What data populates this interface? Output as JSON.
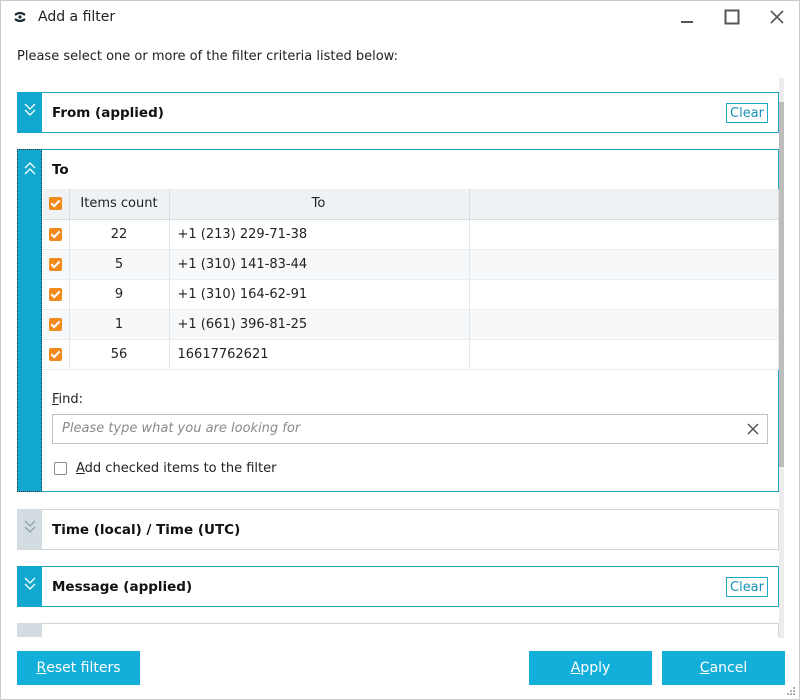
{
  "window": {
    "title": "Add a filter"
  },
  "instruction": "Please select one or more of the filter criteria listed below:",
  "panels": {
    "from": {
      "title": "From  (applied)",
      "clear_label": "Clear"
    },
    "to": {
      "title": "To",
      "columns": [
        "Items count",
        "To"
      ],
      "rows": [
        {
          "count": "22",
          "to": "+1 (213) 229-71-38"
        },
        {
          "count": "5",
          "to": "+1 (310) 141-83-44"
        },
        {
          "count": "9",
          "to": "+1 (310) 164-62-91"
        },
        {
          "count": "1",
          "to": "+1 (661) 396-81-25"
        },
        {
          "count": "56",
          "to": "16617762621"
        }
      ],
      "find_label_first": "F",
      "find_label_rest": "ind:",
      "find_placeholder": "Please type what you are looking for",
      "add_checked_first": "A",
      "add_checked_rest": "dd checked items to the filter"
    },
    "time": {
      "title": "Time (local) / Time (UTC)"
    },
    "message": {
      "title": "Message  (applied)",
      "clear_label": "Clear"
    }
  },
  "buttons": {
    "reset_first": "R",
    "reset_rest": "eset filters",
    "apply_first": "A",
    "apply_rest": "pply",
    "cancel_first": "C",
    "cancel_rest": "ancel"
  },
  "colors": {
    "accent": "#14aedb",
    "checkbox": "#f28a1b",
    "panel_border": "#1ea8c6"
  }
}
